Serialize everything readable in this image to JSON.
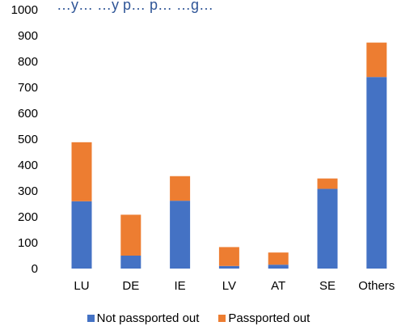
{
  "chart_data": {
    "type": "bar",
    "stacked": true,
    "title": "…y… …y p… p… …g…",
    "categories": [
      "LU",
      "DE",
      "IE",
      "LV",
      "AT",
      "SE",
      "Others"
    ],
    "series": [
      {
        "name": "Not passported out",
        "color": "#4472C4",
        "values": [
          260,
          50,
          262,
          10,
          15,
          308,
          740
        ]
      },
      {
        "name": "Passported out",
        "color": "#ED7D31",
        "values": [
          228,
          158,
          95,
          73,
          47,
          40,
          133
        ]
      }
    ],
    "ylim": [
      0,
      1000
    ],
    "yticks": [
      0,
      100,
      200,
      300,
      400,
      500,
      600,
      700,
      800,
      900,
      1000
    ],
    "grid": false,
    "legend_position": "bottom"
  }
}
